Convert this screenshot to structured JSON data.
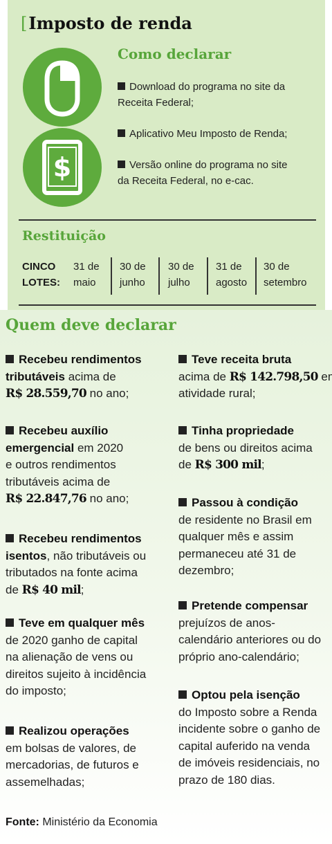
{
  "title": {
    "bracket": "[",
    "text": "Imposto de renda"
  },
  "como_declarar": {
    "heading": "Como declarar",
    "items": [
      {
        "line1": "Download do programa no site da",
        "line2": "Receita Federal;"
      },
      {
        "line1": "Aplicativo Meu Imposto de Renda;",
        "line2": ""
      },
      {
        "line1": "Versão online do programa no site",
        "line2": "da Receita Federal, no e-cac."
      }
    ],
    "icons": [
      "computer-mouse-icon",
      "smartphone-dollar-icon"
    ]
  },
  "restituicao": {
    "heading": "Restituição",
    "label_line1": "CINCO",
    "label_line2": "LOTES:",
    "lotes": [
      {
        "day": "31 de",
        "month": "maio"
      },
      {
        "day": "30 de",
        "month": "junho"
      },
      {
        "day": "30 de",
        "month": "julho"
      },
      {
        "day": "31 de",
        "month": "agosto"
      },
      {
        "day": "30 de",
        "month": "setembro"
      }
    ]
  },
  "quem_deve": {
    "heading": "Quem deve declarar",
    "left": [
      {
        "lines": [
          [
            {
              "t": "b",
              "v": "Recebeu rendimentos"
            }
          ],
          [
            {
              "t": "b",
              "v": "tributáveis"
            },
            {
              "t": "n",
              "v": " acima de"
            }
          ],
          [
            {
              "t": "m",
              "v": "R$ 28.559,70"
            },
            {
              "t": "n",
              "v": " no ano;"
            }
          ]
        ]
      },
      {
        "lines": [
          [
            {
              "t": "b",
              "v": "Recebeu auxílio"
            }
          ],
          [
            {
              "t": "b",
              "v": "emergencial"
            },
            {
              "t": "n",
              "v": " em 2020"
            }
          ],
          [
            {
              "t": "n",
              "v": "e outros rendimentos"
            }
          ],
          [
            {
              "t": "n",
              "v": "tributáveis acima de"
            }
          ],
          [
            {
              "t": "m",
              "v": "R$ 22.847,76"
            },
            {
              "t": "n",
              "v": " no ano;"
            }
          ]
        ]
      },
      {
        "lines": [
          [
            {
              "t": "b",
              "v": "Recebeu rendimentos"
            }
          ],
          [
            {
              "t": "b",
              "v": "isentos"
            },
            {
              "t": "n",
              "v": ", não tributáveis ou"
            }
          ],
          [
            {
              "t": "n",
              "v": "tributados na fonte acima"
            }
          ],
          [
            {
              "t": "n",
              "v": "de "
            },
            {
              "t": "m",
              "v": "R$ 40 mil"
            },
            {
              "t": "n",
              "v": ";"
            }
          ]
        ]
      },
      {
        "lines": [
          [
            {
              "t": "b",
              "v": "Teve em qualquer mês"
            }
          ],
          [
            {
              "t": "n",
              "v": "de 2020 ganho de capital"
            }
          ],
          [
            {
              "t": "n",
              "v": "na alienação de vens ou"
            }
          ],
          [
            {
              "t": "n",
              "v": "direitos sujeito à incidência"
            }
          ],
          [
            {
              "t": "n",
              "v": "do imposto;"
            }
          ]
        ]
      },
      {
        "lines": [
          [
            {
              "t": "b",
              "v": "Realizou operações"
            }
          ],
          [
            {
              "t": "n",
              "v": "em bolsas de valores, de"
            }
          ],
          [
            {
              "t": "n",
              "v": "mercadorias, de futuros e"
            }
          ],
          [
            {
              "t": "n",
              "v": "assemelhadas;"
            }
          ]
        ]
      }
    ],
    "right": [
      {
        "lines": [
          [
            {
              "t": "b",
              "v": "Teve receita bruta"
            }
          ],
          [
            {
              "t": "n",
              "v": "acima de "
            },
            {
              "t": "m",
              "v": "R$ 142.798,50"
            },
            {
              "t": "n",
              "v": " em"
            }
          ],
          [
            {
              "t": "n",
              "v": "atividade rural;"
            }
          ]
        ]
      },
      {
        "lines": [
          [
            {
              "t": "b",
              "v": "Tinha propriedade"
            }
          ],
          [
            {
              "t": "n",
              "v": "de bens ou direitos acima"
            }
          ],
          [
            {
              "t": "n",
              "v": "de "
            },
            {
              "t": "m",
              "v": "R$ 300 mil"
            },
            {
              "t": "n",
              "v": ";"
            }
          ]
        ]
      },
      {
        "lines": [
          [
            {
              "t": "b",
              "v": "Passou à condição"
            }
          ],
          [
            {
              "t": "n",
              "v": "de residente no Brasil em"
            }
          ],
          [
            {
              "t": "n",
              "v": "qualquer mês e assim"
            }
          ],
          [
            {
              "t": "n",
              "v": "permaneceu até 31 de"
            }
          ],
          [
            {
              "t": "n",
              "v": "dezembro;"
            }
          ]
        ]
      },
      {
        "lines": [
          [
            {
              "t": "b",
              "v": "Pretende compensar"
            }
          ],
          [
            {
              "t": "n",
              "v": "prejuízos de anos-"
            }
          ],
          [
            {
              "t": "n",
              "v": "calendário anteriores ou do"
            }
          ],
          [
            {
              "t": "n",
              "v": "próprio ano-calendário;"
            }
          ]
        ]
      },
      {
        "lines": [
          [
            {
              "t": "b",
              "v": "Optou pela isenção"
            }
          ],
          [
            {
              "t": "n",
              "v": "do Imposto sobre a Renda"
            }
          ],
          [
            {
              "t": "n",
              "v": "incidente sobre o ganho de"
            }
          ],
          [
            {
              "t": "n",
              "v": "capital auferido na venda"
            }
          ],
          [
            {
              "t": "n",
              "v": "de imóveis residenciais, no"
            }
          ],
          [
            {
              "t": "n",
              "v": "prazo de 180 dias."
            }
          ]
        ]
      }
    ]
  },
  "fonte": {
    "label": "Fonte:",
    "text": " Ministério da Economia"
  },
  "colors": {
    "accent_green": "#5eab3d",
    "panel_green": "#d9ebc6",
    "heading_green": "#57a53a"
  }
}
